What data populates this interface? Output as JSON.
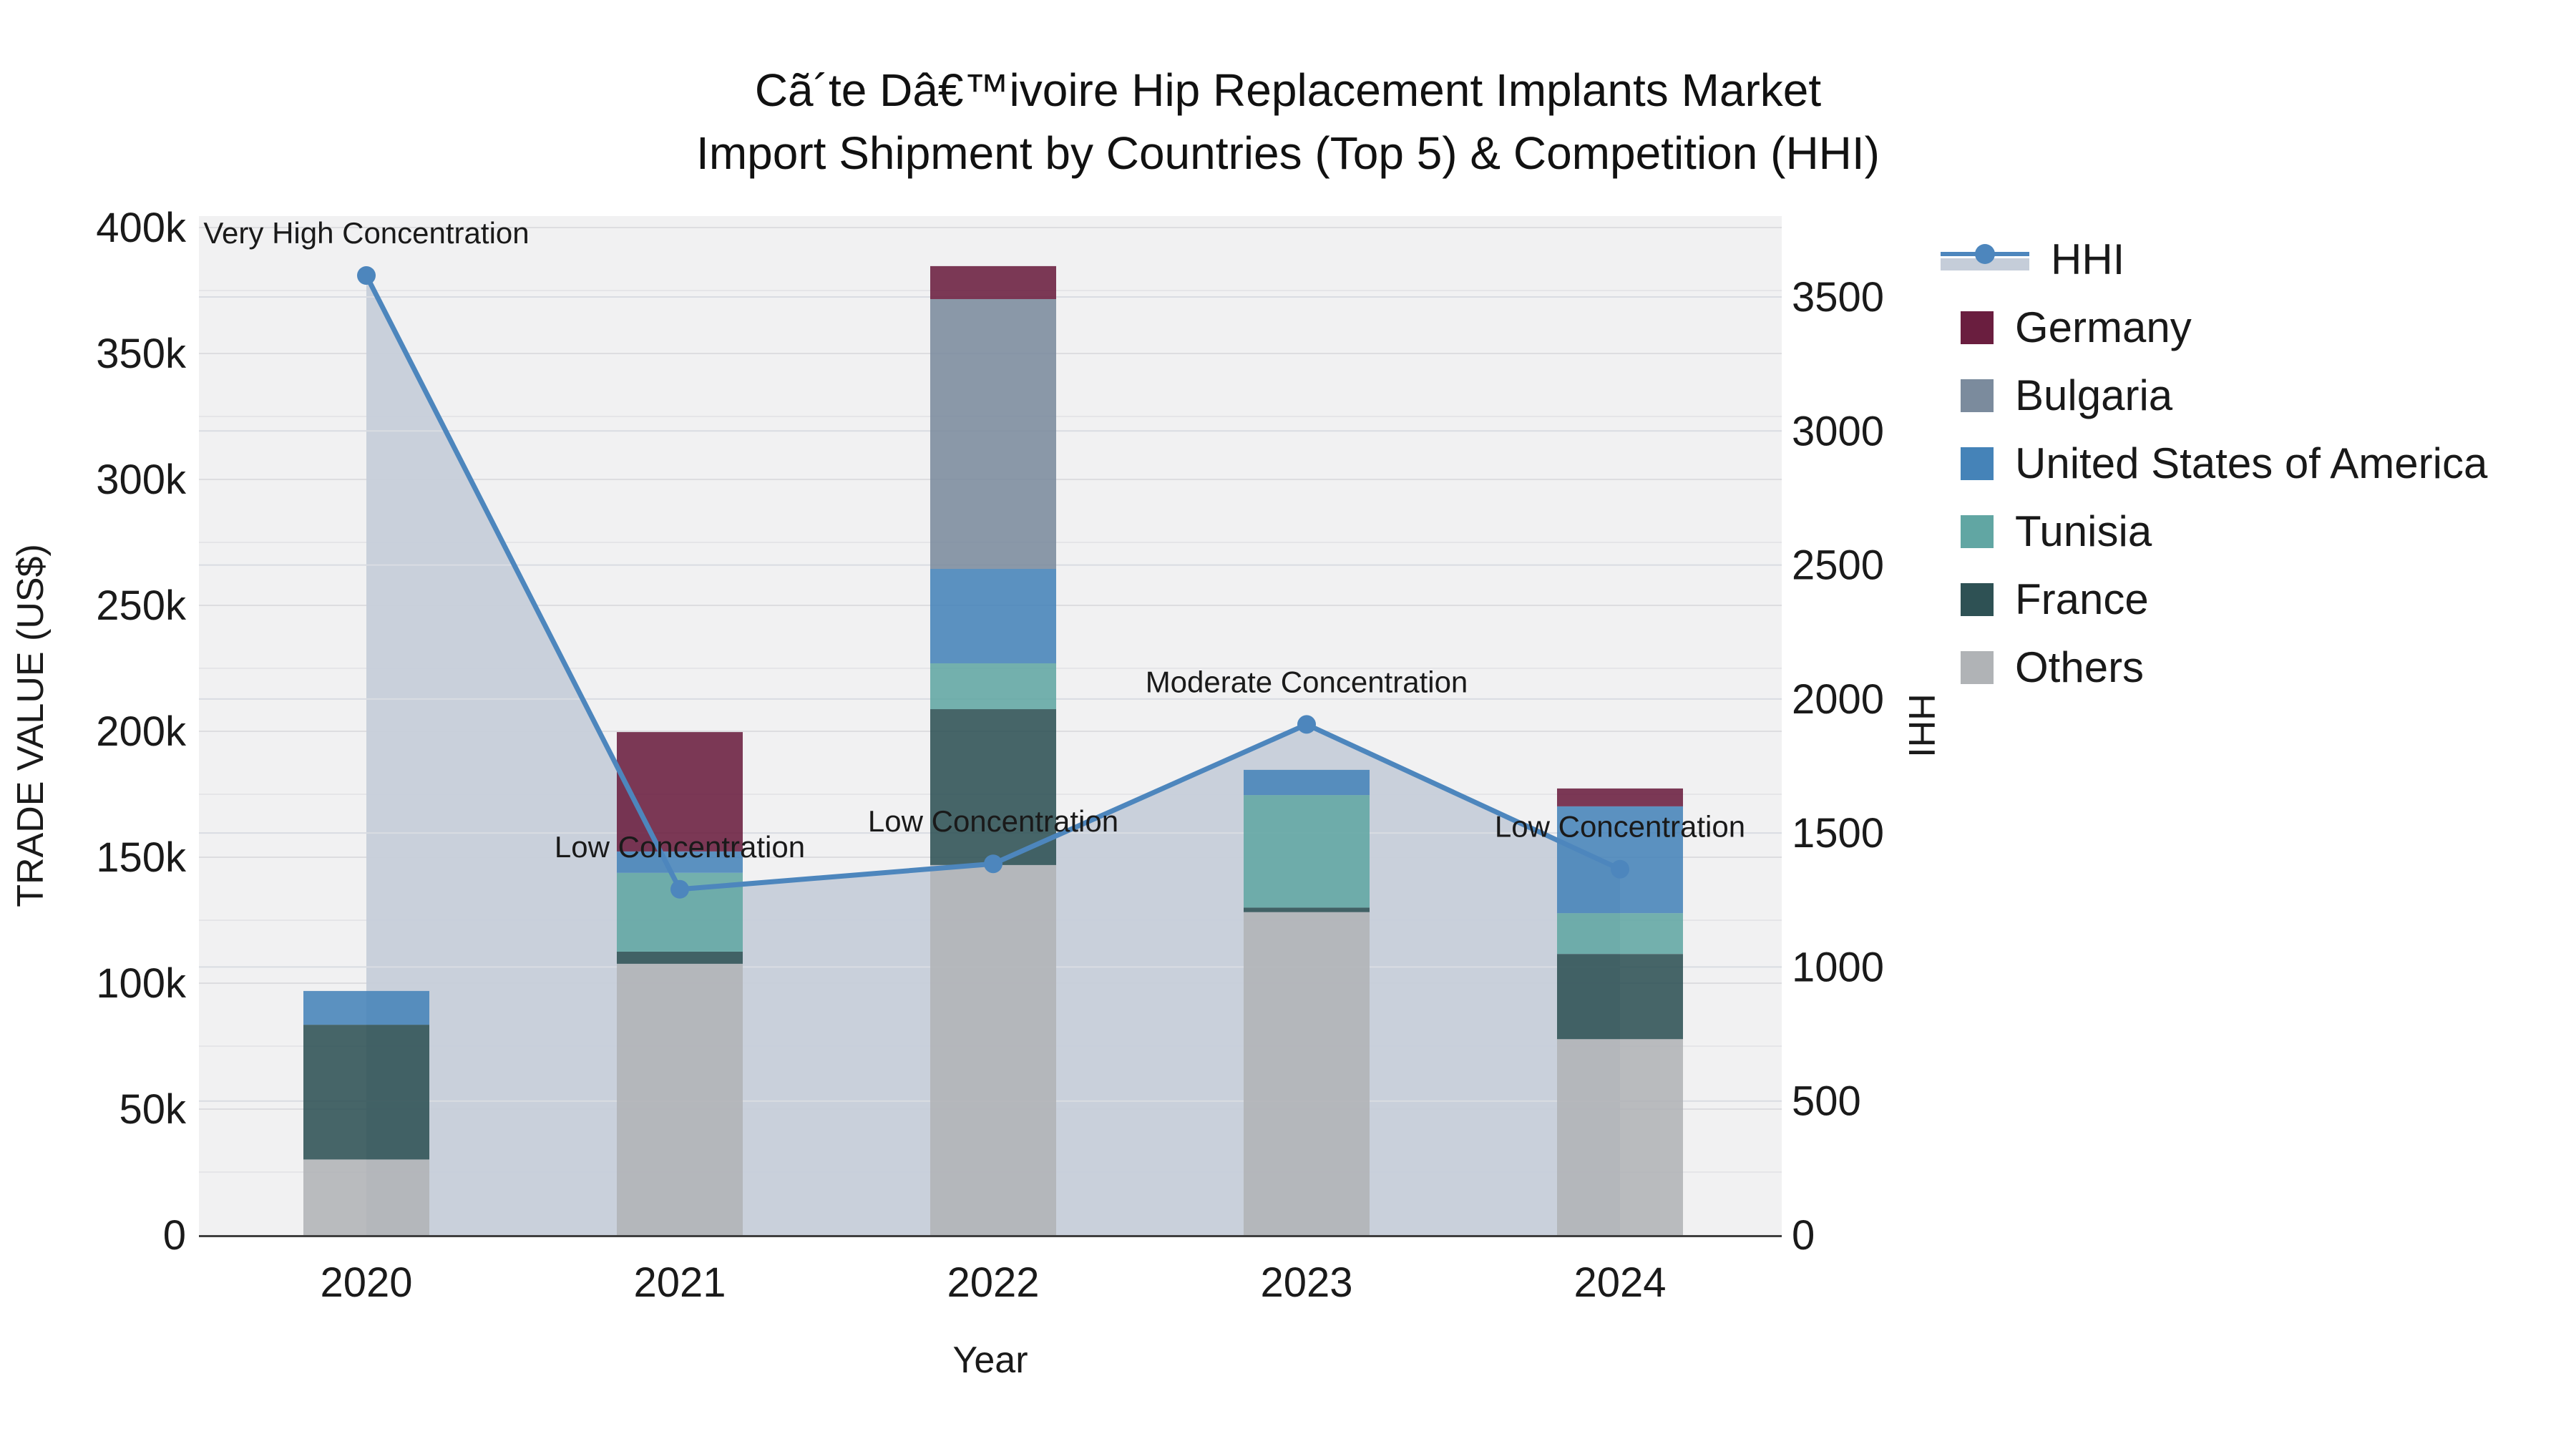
{
  "title": {
    "line1": "Cã´te Dâ€™ivoire Hip Replacement Implants Market",
    "line2": "Import Shipment by Countries (Top 5) & Competition (HHI)"
  },
  "axes": {
    "x": {
      "title": "Year",
      "ticks": [
        "2020",
        "2021",
        "2022",
        "2023",
        "2024"
      ]
    },
    "y_left": {
      "title": "TRADE VALUE (US$)",
      "ticks": [
        "0",
        "50k",
        "100k",
        "150k",
        "200k",
        "250k",
        "300k",
        "350k",
        "400k"
      ],
      "tick_values": [
        0,
        50000,
        100000,
        150000,
        200000,
        250000,
        300000,
        350000,
        400000
      ],
      "range": [
        0,
        400000
      ],
      "minor_grid_step": 25000
    },
    "y_right": {
      "title": "HHI",
      "ticks": [
        "0",
        "500",
        "1000",
        "1500",
        "2000",
        "2500",
        "3000",
        "3500"
      ],
      "tick_values": [
        0,
        500,
        1000,
        1500,
        2000,
        2500,
        3000,
        3500
      ],
      "range": [
        0,
        3500
      ]
    }
  },
  "legend": {
    "items": [
      {
        "label": "HHI",
        "type": "line",
        "color": "#4d86bd",
        "band_color": "#c5cdd9"
      },
      {
        "label": "Germany",
        "type": "square",
        "color": "#6a1e3f"
      },
      {
        "label": "Bulgaria",
        "type": "square",
        "color": "#7b8b9d"
      },
      {
        "label": "United States of America",
        "type": "square",
        "color": "#4583b8"
      },
      {
        "label": "Tunisia",
        "type": "square",
        "color": "#61a6a3"
      },
      {
        "label": "France",
        "type": "square",
        "color": "#2e5154"
      },
      {
        "label": "Others",
        "type": "square",
        "color": "#b0b3b6"
      }
    ]
  },
  "chart_data": {
    "type": "bar+line",
    "title": "Cã´te Dâ€™ivoire Hip Replacement Implants Market Import Shipment by Countries (Top 5) & Competition (HHI)",
    "xlabel": "Year",
    "ylabel_left": "TRADE VALUE (US$)",
    "ylabel_right": "HHI",
    "categories": [
      "2020",
      "2021",
      "2022",
      "2023",
      "2024"
    ],
    "stack_order_bottom_to_top": [
      "Others",
      "France",
      "Tunisia",
      "United States of America",
      "Bulgaria",
      "Germany"
    ],
    "series": [
      {
        "name": "Germany",
        "color": "#6a1e3f",
        "values": [
          0,
          47400,
          13100,
          0,
          7100
        ]
      },
      {
        "name": "Bulgaria",
        "color": "#7b8b9d",
        "values": [
          0,
          0,
          107100,
          0,
          0
        ]
      },
      {
        "name": "United States of America",
        "color": "#4583b8",
        "values": [
          13400,
          8500,
          37500,
          10000,
          42400
        ]
      },
      {
        "name": "Tunisia",
        "color": "#61a6a3",
        "values": [
          0,
          31300,
          18200,
          44700,
          16200
        ]
      },
      {
        "name": "France",
        "color": "#2e5154",
        "values": [
          53500,
          4800,
          61900,
          1800,
          33800
        ]
      },
      {
        "name": "Others",
        "color": "#b0b3b6",
        "values": [
          30000,
          107700,
          146900,
          128200,
          77800
        ]
      }
    ],
    "bar_totals": [
      96900,
      199700,
      384700,
      184700,
      177300
    ],
    "hhi": {
      "name": "HHI",
      "values": [
        3580,
        1290,
        1385,
        1905,
        1365
      ],
      "line_color": "#4d86bd",
      "area_fill_color": "#c5cdd9"
    },
    "annotations": [
      {
        "x": "2020",
        "text": "Very High Concentration"
      },
      {
        "x": "2021",
        "text": "Low Concentration"
      },
      {
        "x": "2022",
        "text": "Low Concentration"
      },
      {
        "x": "2023",
        "text": "Moderate Concentration"
      },
      {
        "x": "2024",
        "text": "Low Concentration"
      }
    ],
    "legend_position": "right",
    "grid": true,
    "plot_bg_color": "#f1f1f2"
  }
}
